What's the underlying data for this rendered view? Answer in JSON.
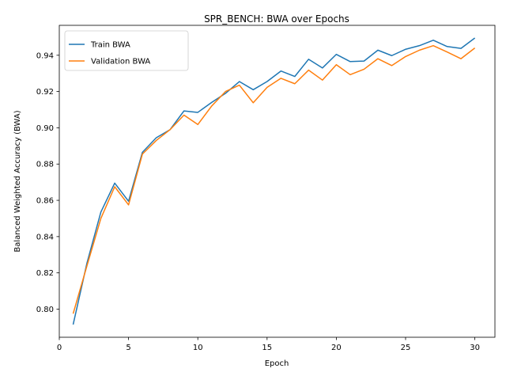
{
  "chart_data": {
    "type": "line",
    "title": "SPR_BENCH: BWA over Epochs",
    "xlabel": "Epoch",
    "ylabel": "Balanced Weighted Accuracy (BWA)",
    "xlim": [
      0,
      31.45
    ],
    "ylim": [
      0.7845,
      0.9565
    ],
    "xticks": [
      0,
      5,
      10,
      15,
      20,
      25,
      30
    ],
    "xtick_labels": [
      "0",
      "5",
      "10",
      "15",
      "20",
      "25",
      "30"
    ],
    "yticks": [
      0.8,
      0.82,
      0.84,
      0.86,
      0.88,
      0.9,
      0.92,
      0.94
    ],
    "ytick_labels": [
      "0.80",
      "0.82",
      "0.84",
      "0.86",
      "0.88",
      "0.90",
      "0.92",
      "0.94"
    ],
    "grid": false,
    "legend_position": "top-left",
    "x": [
      1,
      2,
      3,
      4,
      5,
      6,
      7,
      8,
      9,
      10,
      11,
      12,
      13,
      14,
      15,
      16,
      17,
      18,
      19,
      20,
      21,
      22,
      23,
      24,
      25,
      26,
      27,
      28,
      29,
      30
    ],
    "series": [
      {
        "name": "Train BWA",
        "color": "#1f77b4",
        "values": [
          0.7915,
          0.8255,
          0.8535,
          0.8695,
          0.8595,
          0.8865,
          0.8945,
          0.899,
          0.9093,
          0.9085,
          0.914,
          0.919,
          0.9255,
          0.921,
          0.9255,
          0.9313,
          0.9283,
          0.9378,
          0.933,
          0.9405,
          0.9365,
          0.9368,
          0.9428,
          0.9398,
          0.9433,
          0.9453,
          0.9483,
          0.9448,
          0.9438,
          0.9495
        ]
      },
      {
        "name": "Validation BWA",
        "color": "#ff7f0e",
        "values": [
          0.7975,
          0.824,
          0.85,
          0.8675,
          0.8575,
          0.8855,
          0.893,
          0.899,
          0.907,
          0.9018,
          0.912,
          0.92,
          0.9235,
          0.9138,
          0.9223,
          0.9273,
          0.9243,
          0.9318,
          0.9263,
          0.9348,
          0.9293,
          0.9323,
          0.9381,
          0.9343,
          0.9393,
          0.9428,
          0.9453,
          0.9418,
          0.9381,
          0.944
        ]
      }
    ]
  }
}
